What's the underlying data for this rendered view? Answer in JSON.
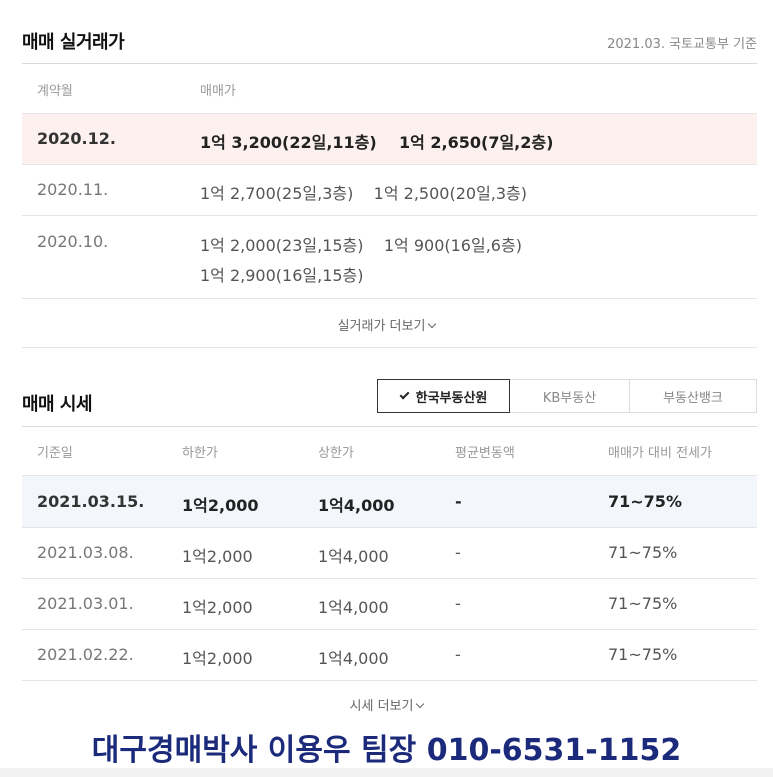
{
  "actual_trade": {
    "title": "매매 실거래가",
    "source_note": "2021.03. 국토교통부 기준",
    "headers": {
      "month": "계약월",
      "price": "매매가"
    },
    "rows": [
      {
        "month": "2020.12.",
        "line1": "1억 3,200(22일,11층)    1억 2,650(7일,2층)",
        "line2": ""
      },
      {
        "month": "2020.11.",
        "line1": "1억 2,700(25일,3층)    1억 2,500(20일,3층)",
        "line2": ""
      },
      {
        "month": "2020.10.",
        "line1": "1억 2,000(23일,15층)    1억 900(16일,6층)",
        "line2": "1억 2,900(16일,15층)"
      }
    ],
    "more_label": "실거래가 더보기"
  },
  "market_price": {
    "title": "매매 시세",
    "tabs": [
      {
        "label": "한국부동산원",
        "active": true
      },
      {
        "label": "KB부동산",
        "active": false
      },
      {
        "label": "부동산뱅크",
        "active": false
      }
    ],
    "headers": {
      "date": "기준일",
      "low": "하한가",
      "high": "상한가",
      "avg_change": "평균변동액",
      "ratio": "매매가 대비 전세가"
    },
    "rows": [
      {
        "date": "2021.03.15.",
        "low": "1억2,000",
        "high": "1억4,000",
        "avg_change": "-",
        "ratio": "71~75%"
      },
      {
        "date": "2021.03.08.",
        "low": "1억2,000",
        "high": "1억4,000",
        "avg_change": "-",
        "ratio": "71~75%"
      },
      {
        "date": "2021.03.01.",
        "low": "1억2,000",
        "high": "1억4,000",
        "avg_change": "-",
        "ratio": "71~75%"
      },
      {
        "date": "2021.02.22.",
        "low": "1억2,000",
        "high": "1억4,000",
        "avg_change": "-",
        "ratio": "71~75%"
      }
    ],
    "more_label": "시세 더보기"
  },
  "watermark": "대구경매박사 이용우 팀장 010-6531-1152",
  "colors": {
    "highlight_pink": "#fdf1f0",
    "highlight_blue": "#f3f7fc",
    "watermark": "#1b2a7a"
  }
}
